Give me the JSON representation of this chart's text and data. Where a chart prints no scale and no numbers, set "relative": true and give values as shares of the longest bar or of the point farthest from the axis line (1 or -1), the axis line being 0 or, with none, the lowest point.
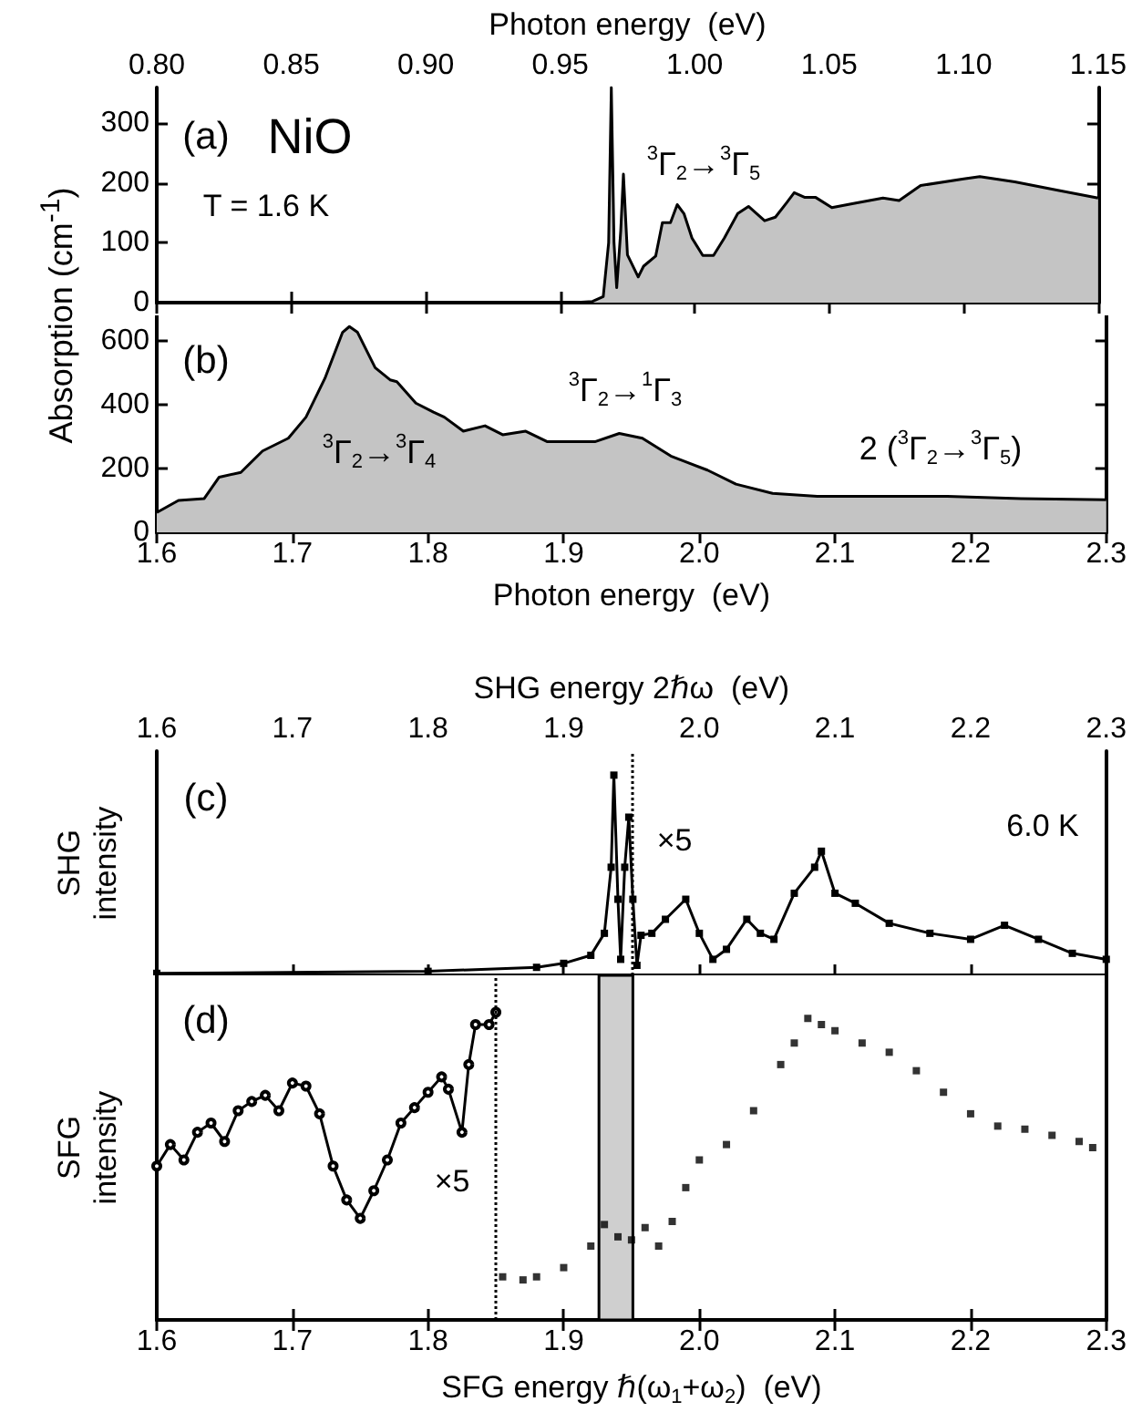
{
  "chart_data": [
    {
      "type": "area",
      "xlabel": "Photon energy  (eV)",
      "ylabel": "Absorption (cm$^{-1}$)",
      "xlim": [
        0.8,
        1.15
      ],
      "xticks": [
        {
          "value": 0.8,
          "label": "0.80"
        },
        0.85,
        {
          "value": 0.9,
          "label": "0.90"
        },
        0.95,
        {
          "value": 1.0,
          "label": "1.00"
        },
        1.05,
        {
          "value": 1.1,
          "label": "1.10"
        },
        1.15
      ],
      "ylim": [
        0,
        360
      ],
      "yticks": [
        0,
        100,
        200,
        300
      ],
      "grid": false,
      "marker": "none",
      "color": "#c4c4c4",
      "x": [
        0.8,
        0.955,
        0.962,
        0.966,
        0.968,
        0.969,
        0.97,
        0.971,
        0.9725,
        0.9735,
        0.975,
        0.979,
        0.981,
        0.9855,
        0.988,
        0.991,
        0.9935,
        0.996,
        0.999,
        1.003,
        1.007,
        1.011,
        1.016,
        1.02,
        1.026,
        1.03,
        1.034,
        1.037,
        1.041,
        1.045,
        1.051,
        1.059,
        1.07,
        1.076,
        1.084,
        1.1,
        1.106,
        1.119,
        1.135,
        1.15
      ],
      "values": [
        0,
        0,
        2,
        10,
        100,
        360,
        100,
        25,
        120,
        215,
        80,
        43,
        61,
        78,
        134,
        134,
        164,
        149,
        108,
        79,
        79,
        108,
        149,
        161,
        137,
        143,
        166,
        184,
        176,
        176,
        159,
        166,
        175,
        171,
        196,
        207,
        211,
        202,
        188,
        175
      ],
      "annotations": [
        "(a)",
        "NiO",
        "T = 1.6 K",
        "$^{3}$Γ$_{2}$→$^{3}$Γ$_{5}$"
      ]
    },
    {
      "type": "area",
      "xlabel": "Photon energy  (eV)",
      "xlim": [
        1.6,
        2.3
      ],
      "xticks": [
        1.6,
        1.7,
        1.8,
        1.9,
        {
          "value": 2.0,
          "label": "2.0"
        },
        2.1,
        2.2,
        2.3
      ],
      "ylim": [
        0,
        680
      ],
      "yticks": [
        0,
        200,
        400,
        600
      ],
      "grid": false,
      "marker": "none",
      "color": "#c4c4c4",
      "x": [
        1.6,
        1.616,
        1.635,
        1.646,
        1.662,
        1.678,
        1.697,
        1.71,
        1.724,
        1.737,
        1.742,
        1.748,
        1.761,
        1.772,
        1.777,
        1.791,
        1.804,
        1.812,
        1.826,
        1.842,
        1.855,
        1.872,
        1.888,
        1.909,
        1.923,
        1.941,
        1.958,
        1.979,
        2.006,
        2.027,
        2.054,
        2.087,
        2.13,
        2.183,
        2.237,
        2.3
      ],
      "values": [
        62,
        100,
        106,
        173,
        188,
        255,
        295,
        361,
        483,
        627,
        645,
        627,
        516,
        478,
        472,
        405,
        377,
        361,
        317,
        334,
        306,
        317,
        284,
        284,
        284,
        310,
        295,
        239,
        195,
        151,
        122,
        113,
        113,
        113,
        106,
        102
      ],
      "annotations": [
        "(b)",
        "$^{3}$Γ$_{2}$→$^{3}$Γ$_{4}$",
        "$^{3}$Γ$_{2}$→$^{1}$Γ$_{3}$",
        "2 ($^{3}$Γ$_{2}$→$^{3}$Γ$_{5}$)"
      ]
    },
    {
      "type": "line",
      "relative": true,
      "xlabel": "SHG energy 2ℏω  (eV)",
      "ylabel": "SHG\nintensity",
      "xlim": [
        1.6,
        2.3
      ],
      "xticks": [
        1.6,
        1.7,
        1.8,
        1.9,
        {
          "value": 2.0,
          "label": "2.0"
        },
        2.1,
        2.2,
        2.3
      ],
      "grid": false,
      "marker": "square",
      "color": "#000000",
      "x": [
        1.6,
        1.8,
        1.88,
        1.9,
        1.92,
        1.93,
        1.935,
        1.937,
        1.94,
        1.942,
        1.945,
        1.948,
        1.951,
        1.954,
        1.957,
        1.965,
        1.975,
        1.99,
        2.0,
        2.01,
        2.02,
        2.035,
        2.045,
        2.055,
        2.07,
        2.085,
        2.09,
        2.1,
        2.115,
        2.14,
        2.17,
        2.2,
        2.225,
        2.25,
        2.275,
        2.3
      ],
      "values": [
        0.01,
        0.02,
        0.04,
        0.06,
        0.1,
        0.21,
        0.54,
        1.0,
        0.38,
        0.08,
        0.54,
        0.79,
        0.38,
        0.05,
        0.2,
        0.21,
        0.28,
        0.38,
        0.21,
        0.08,
        0.13,
        0.28,
        0.21,
        0.18,
        0.41,
        0.54,
        0.62,
        0.41,
        0.36,
        0.26,
        0.21,
        0.18,
        0.25,
        0.18,
        0.11,
        0.08
      ],
      "ref_lines": [
        {
          "axis": "x",
          "value": 1.953,
          "line_style": "dotted",
          "color": "#000000"
        }
      ],
      "annotations": [
        "(c)",
        "6.0 K",
        "×5"
      ]
    },
    {
      "type": "scatter",
      "relative": true,
      "xlabel": "SFG energy ℏ(ω$_{1}$+ω$_{2}$)  (eV)",
      "ylabel": "SFG\nintensity",
      "xlim": [
        1.6,
        2.3
      ],
      "xticks": [
        1.6,
        1.7,
        1.8,
        1.9,
        {
          "value": 2.0,
          "label": "2.0"
        },
        2.1,
        2.2,
        2.3
      ],
      "grid": false,
      "series": [
        {
          "type": "line",
          "marker": "circle",
          "color": "#000000",
          "x": [
            1.6,
            1.61,
            1.62,
            1.63,
            1.64,
            1.65,
            1.66,
            1.67,
            1.68,
            1.69,
            1.7,
            1.71,
            1.72,
            1.73,
            1.74,
            1.75,
            1.76,
            1.77,
            1.78,
            1.79,
            1.8,
            1.81,
            1.815,
            1.825,
            1.83,
            1.835,
            1.845,
            1.85
          ],
          "values": [
            0.5,
            0.57,
            0.52,
            0.61,
            0.64,
            0.58,
            0.68,
            0.71,
            0.73,
            0.68,
            0.77,
            0.76,
            0.67,
            0.5,
            0.39,
            0.33,
            0.42,
            0.52,
            0.64,
            0.69,
            0.74,
            0.79,
            0.75,
            0.61,
            0.83,
            0.96,
            0.96,
            1.0
          ]
        },
        {
          "marker": "square",
          "color": "#000000",
          "x": [
            1.855,
            1.87,
            1.88,
            1.9,
            1.92,
            1.93,
            1.94,
            1.95,
            1.96,
            1.97,
            1.98,
            1.99,
            2.0,
            2.02,
            2.04,
            2.06,
            2.07,
            2.08,
            2.09,
            2.1,
            2.12,
            2.14,
            2.16,
            2.18,
            2.2,
            2.22,
            2.24,
            2.26,
            2.28,
            2.29
          ],
          "values": [
            0.14,
            0.13,
            0.14,
            0.17,
            0.24,
            0.31,
            0.27,
            0.26,
            0.3,
            0.24,
            0.32,
            0.43,
            0.52,
            0.57,
            0.68,
            0.83,
            0.9,
            0.98,
            0.96,
            0.94,
            0.9,
            0.87,
            0.81,
            0.74,
            0.67,
            0.63,
            0.62,
            0.6,
            0.58,
            0.56
          ]
        }
      ],
      "ref_lines": [
        {
          "axis": "x",
          "value": 1.85,
          "line_style": "dotted",
          "color": "#000000"
        }
      ],
      "bands": [
        {
          "axis": "x",
          "from": 1.926,
          "to": 1.951,
          "color": "#cfcfcf"
        }
      ],
      "annotations": [
        "(d)",
        "×5"
      ]
    }
  ]
}
